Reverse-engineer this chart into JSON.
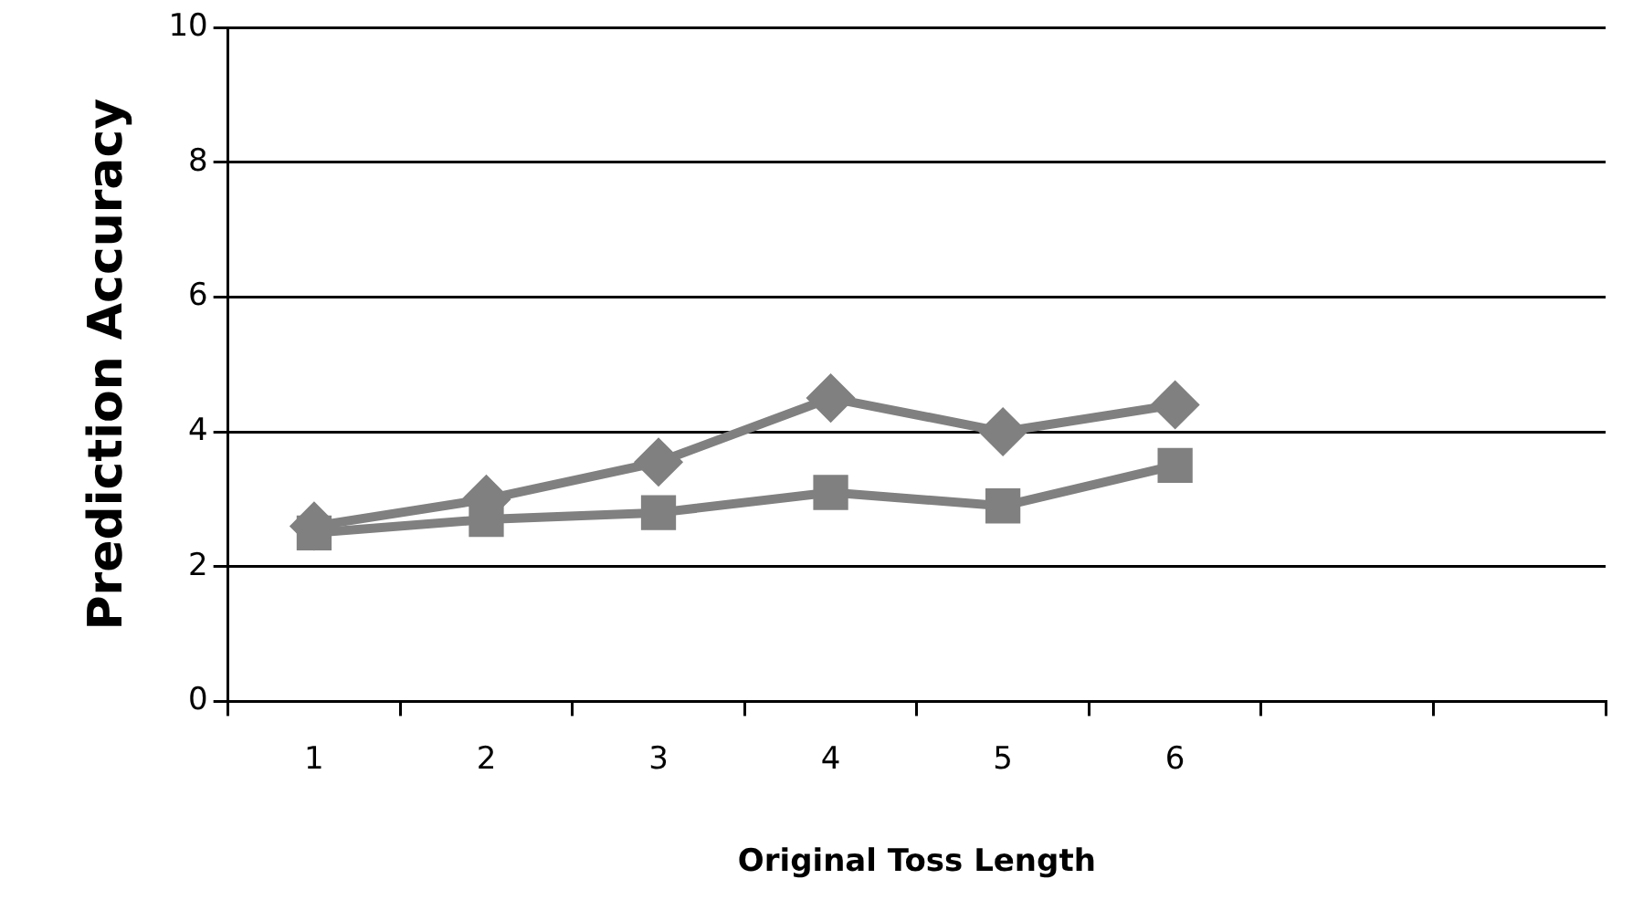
{
  "chart_data": {
    "type": "line",
    "xlabel": "Original Toss Length",
    "ylabel": "Prediction Accuracy",
    "categories": [
      "1",
      "2",
      "3",
      "4",
      "5",
      "6",
      null,
      null
    ],
    "series": [
      {
        "color": "#808080",
        "marker": "diamond",
        "values": [
          2.6,
          3.0,
          3.55,
          4.5,
          4.0,
          4.4,
          null,
          null
        ]
      },
      {
        "color": "#808080",
        "marker": "square",
        "values": [
          2.5,
          2.7,
          2.8,
          3.1,
          2.9,
          3.5,
          null,
          null
        ]
      }
    ],
    "ylim": [
      0,
      10
    ],
    "yticks": [
      0,
      2,
      4,
      6,
      8,
      10
    ],
    "grid": "y",
    "legend": false,
    "line_style": "solid"
  }
}
